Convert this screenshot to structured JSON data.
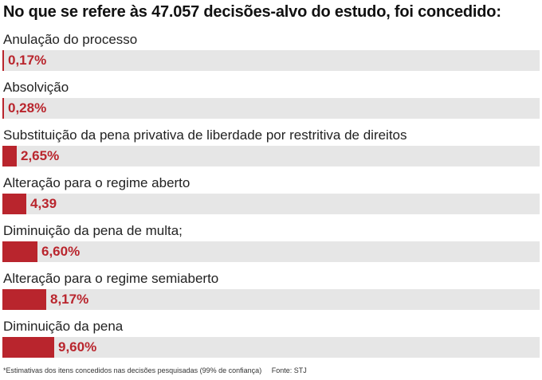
{
  "title": "No que se refere às 47.057 decisões-alvo do estudo, foi concedido:",
  "colors": {
    "bar": "#b9252d",
    "track": "#e6e6e6",
    "value_text": "#b9252d"
  },
  "chart_data": {
    "type": "bar",
    "orientation": "horizontal",
    "title": "No que se refere às 47.057 decisões-alvo do estudo, foi concedido:",
    "categories": [
      "Anulação do processo",
      "Absolvição",
      "Substituição da pena privativa de liberdade por restritiva de direitos",
      "Alteração para o regime aberto",
      "Diminuição da pena de multa;",
      "Alteração para o regime semiaberto",
      "Diminuição da pena"
    ],
    "values": [
      0.17,
      0.28,
      2.65,
      4.39,
      6.6,
      8.17,
      9.6
    ],
    "value_labels": [
      "0,17%",
      "0,28%",
      "2,65%",
      "4,39",
      "6,60%",
      "8,17%",
      "9,60%"
    ],
    "xlim": [
      0,
      100
    ],
    "grid": false
  },
  "footnote": {
    "note": "*Estimativas dos itens concedidos nas decisões pesquisadas (99% de confiança)",
    "source": "Fonte: STJ"
  }
}
